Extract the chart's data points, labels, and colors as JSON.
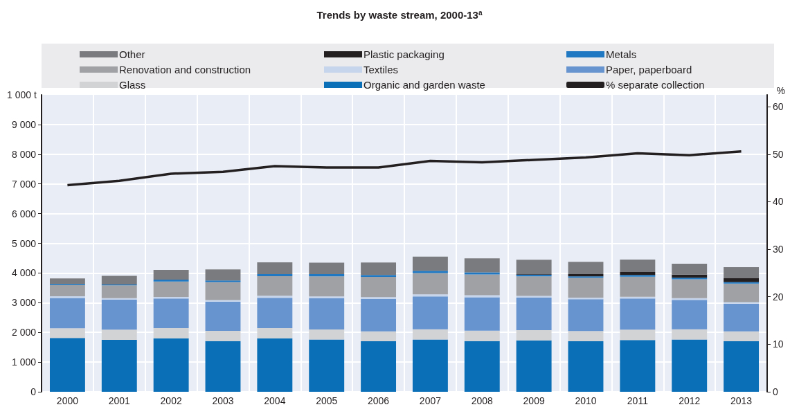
{
  "chart_data": {
    "type": "bar",
    "title": "Trends by waste stream, 2000-13$^{a}$",
    "ylabel": "1 000 t",
    "y2label": "%",
    "stacked": true,
    "grid": true,
    "legend": "top",
    "categories": [
      "2000",
      "2001",
      "2002",
      "2003",
      "2004",
      "2005",
      "2006",
      "2007",
      "2008",
      "2009",
      "2010",
      "2011",
      "2012",
      "2013"
    ],
    "series": [
      {
        "name": "Organic and garden waste",
        "color": "#0b6fb7",
        "values": [
          1810,
          1750,
          1800,
          1710,
          1800,
          1760,
          1700,
          1760,
          1710,
          1730,
          1700,
          1740,
          1760,
          1700
        ]
      },
      {
        "name": "Glass",
        "color": "#d2d3d5",
        "values": [
          330,
          340,
          345,
          340,
          345,
          340,
          335,
          345,
          350,
          345,
          345,
          350,
          345,
          335
        ]
      },
      {
        "name": "Paper, paperboard",
        "color": "#6794cf",
        "values": [
          1020,
          1010,
          995,
          980,
          1020,
          1055,
          1090,
          1105,
          1120,
          1095,
          1070,
          1050,
          990,
          930
        ]
      },
      {
        "name": "Textiles",
        "color": "#c6d5ec",
        "values": [
          55,
          55,
          55,
          60,
          70,
          55,
          60,
          70,
          70,
          60,
          55,
          60,
          60,
          55
        ]
      },
      {
        "name": "Renovation and construction",
        "color": "#a0a1a4",
        "values": [
          375,
          430,
          520,
          605,
          660,
          675,
          685,
          715,
          700,
          655,
          670,
          675,
          630,
          620
        ]
      },
      {
        "name": "Metals",
        "color": "#1f78c1",
        "values": [
          40,
          30,
          60,
          50,
          70,
          75,
          65,
          80,
          70,
          60,
          45,
          60,
          55,
          55
        ]
      },
      {
        "name": "Plastic packaging",
        "color": "#231f20",
        "values": [
          0,
          0,
          0,
          0,
          0,
          0,
          0,
          0,
          0,
          20,
          75,
          100,
          105,
          125
        ]
      },
      {
        "name": "Other",
        "color": "#7a7b7e",
        "values": [
          185,
          290,
          325,
          375,
          395,
          390,
          420,
          475,
          475,
          480,
          415,
          420,
          365,
          375
        ]
      },
      {
        "name": "% separate collection",
        "type": "line",
        "axis": "y2",
        "color": "#231f20",
        "values": [
          43.5,
          44.4,
          45.9,
          46.3,
          47.5,
          47.2,
          47.2,
          48.6,
          48.3,
          48.8,
          49.3,
          50.2,
          49.8,
          50.6
        ]
      }
    ],
    "ylim": [
      0,
      10000
    ],
    "yticks": [
      0,
      {
        "value": 1000,
        "label": "1 000"
      },
      {
        "value": 2000,
        "label": "2 000"
      },
      {
        "value": 3000,
        "label": "3 000"
      },
      {
        "value": 4000,
        "label": "4 000"
      },
      {
        "value": 5000,
        "label": "5 000"
      },
      {
        "value": 6000,
        "label": "6 000"
      },
      {
        "value": 7000,
        "label": "7 000"
      },
      {
        "value": 8000,
        "label": "8 000"
      },
      {
        "value": 9000,
        "label": "9 000"
      }
    ],
    "y2lim": [
      0,
      62.5
    ],
    "y2ticks": [
      0,
      10,
      20,
      30,
      40,
      50,
      60
    ]
  }
}
